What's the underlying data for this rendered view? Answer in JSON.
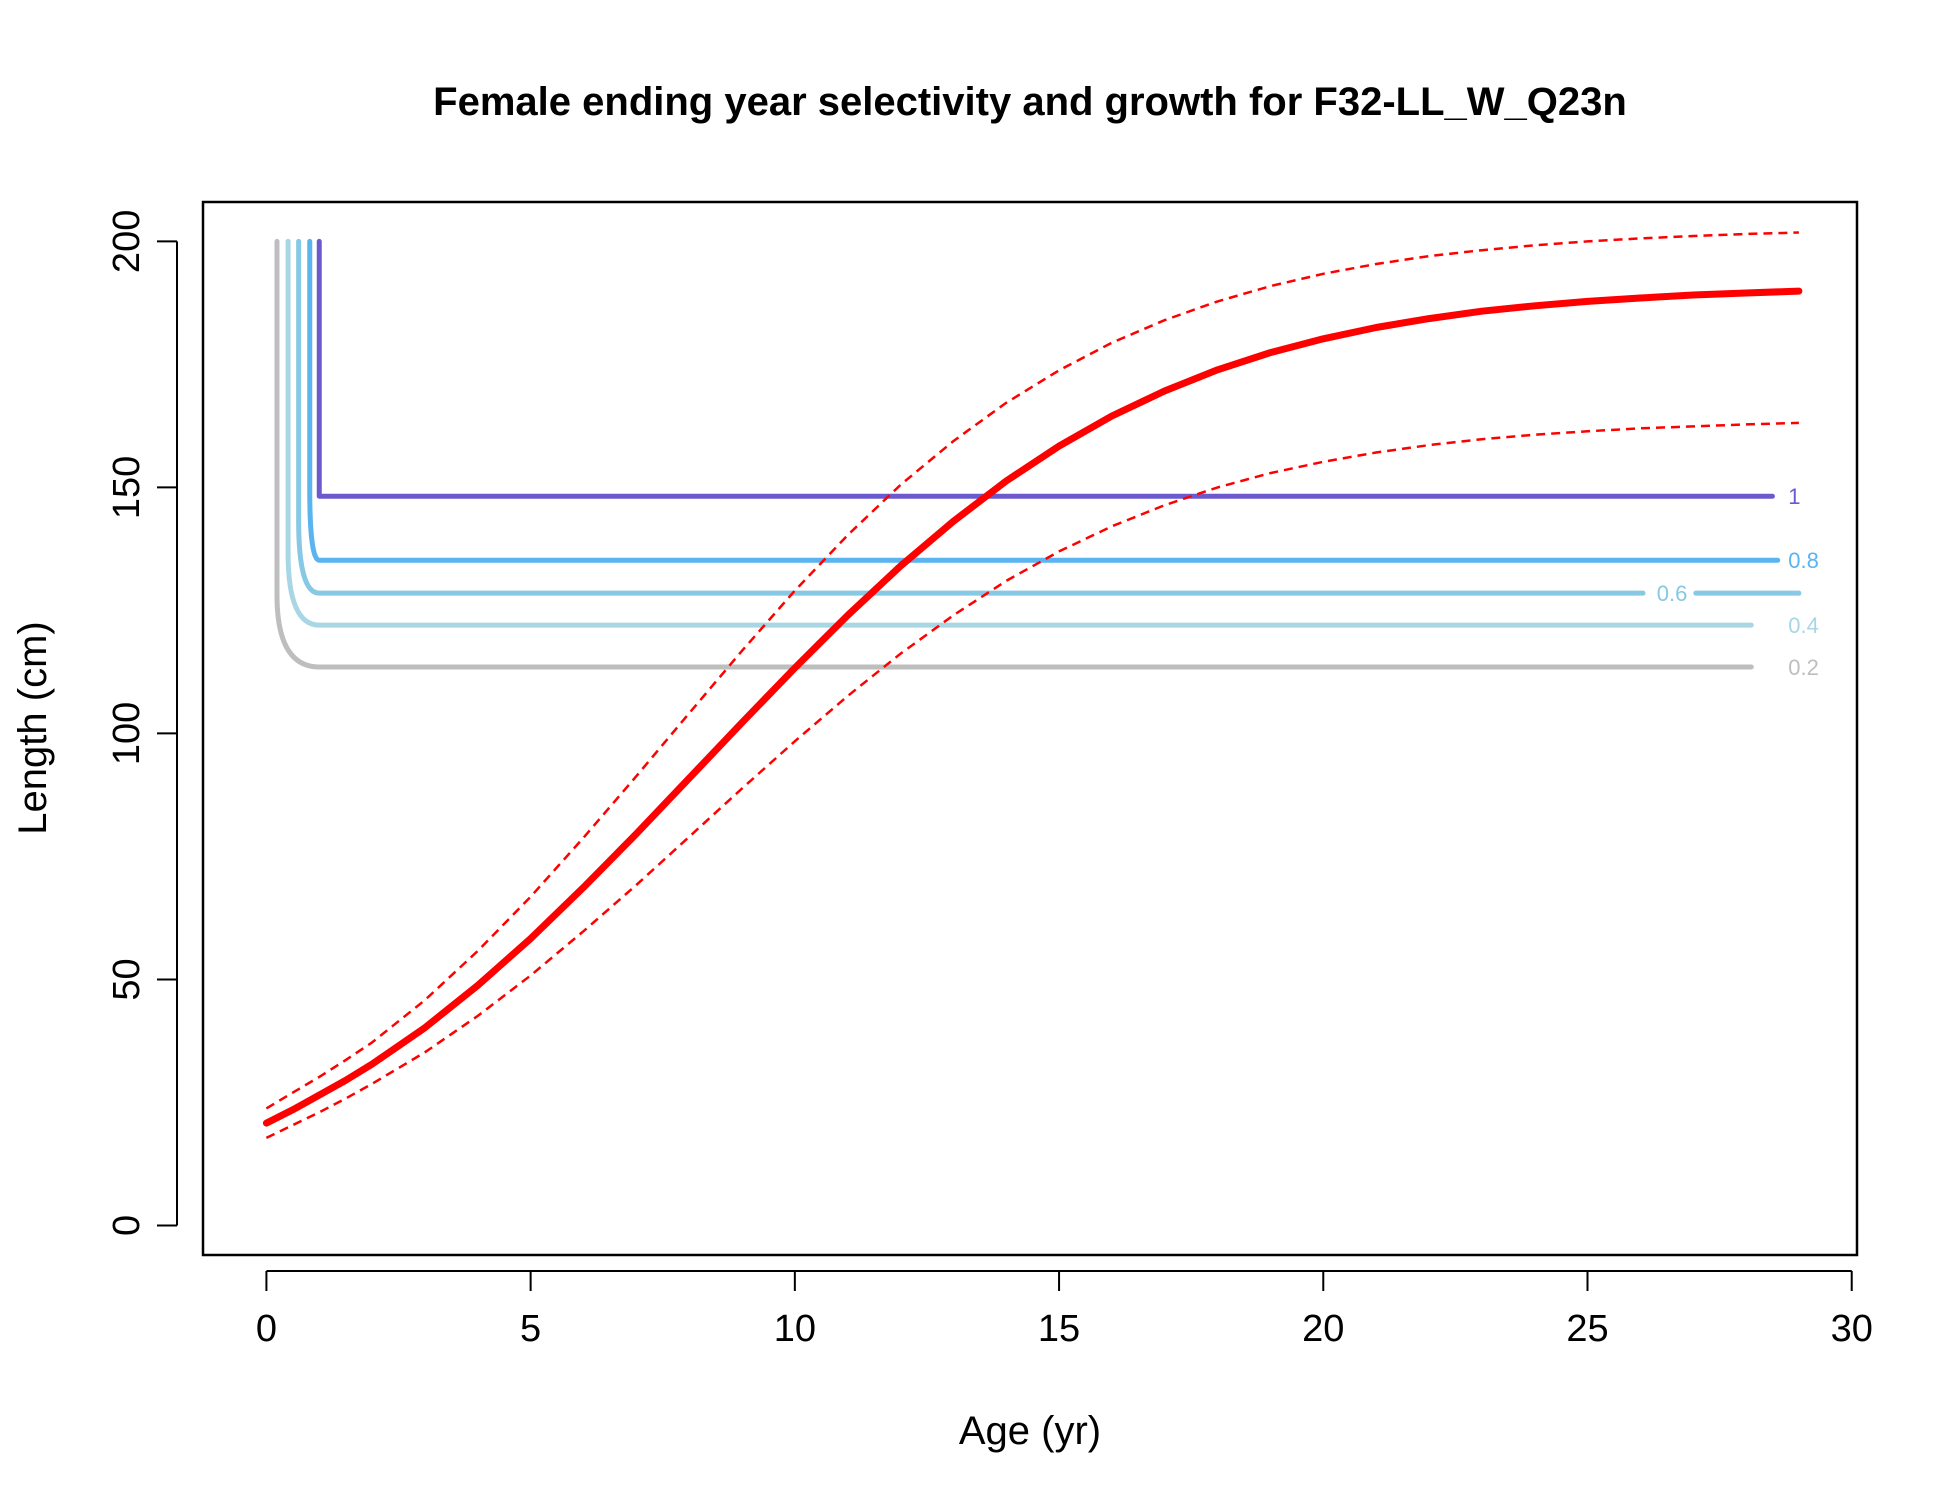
{
  "chart_data": {
    "type": "line",
    "title": "Female ending year selectivity and growth for F32-LL_W_Q23n",
    "xlabel": "Age (yr)",
    "ylabel": "Length (cm)",
    "xlim": [
      -1.2,
      30.1
    ],
    "ylim": [
      -6,
      208
    ],
    "x_ticks": [
      0,
      5,
      10,
      15,
      20,
      25,
      30
    ],
    "y_ticks": [
      0,
      50,
      100,
      150,
      200
    ],
    "grid": false,
    "legend": "none",
    "growth": {
      "color": "#ff0000",
      "age": [
        0,
        0.5,
        1,
        1.5,
        2,
        3,
        4,
        5,
        6,
        7,
        8,
        9,
        10,
        11,
        12,
        13,
        14,
        15,
        16,
        17,
        18,
        19,
        20,
        21,
        22,
        23,
        24,
        25,
        26,
        27,
        28,
        29
      ],
      "mean": [
        20.8,
        23.5,
        26.5,
        29.5,
        32.8,
        40.2,
        48.8,
        58.3,
        68.7,
        79.6,
        90.9,
        102.2,
        113.3,
        124.0,
        134.0,
        143.1,
        151.3,
        158.4,
        164.5,
        169.6,
        173.9,
        177.4,
        180.2,
        182.5,
        184.3,
        185.8,
        186.9,
        187.8,
        188.5,
        189.1,
        189.5,
        189.9
      ],
      "upper": [
        23.8,
        27.0,
        30.2,
        33.6,
        37.2,
        45.8,
        55.8,
        66.8,
        78.8,
        91.3,
        104.1,
        116.8,
        129.0,
        140.3,
        150.5,
        159.4,
        167.2,
        173.8,
        179.4,
        184.0,
        187.8,
        190.9,
        193.4,
        195.4,
        197.0,
        198.2,
        199.2,
        200.0,
        200.6,
        201.1,
        201.5,
        201.8
      ],
      "lower": [
        17.8,
        20.4,
        23.0,
        25.8,
        28.8,
        35.2,
        42.6,
        50.8,
        59.8,
        69.2,
        79.0,
        88.8,
        98.4,
        107.6,
        116.2,
        124.0,
        131.0,
        137.0,
        142.1,
        146.4,
        150.0,
        152.9,
        155.2,
        157.1,
        158.6,
        159.8,
        160.7,
        161.4,
        162.0,
        162.4,
        162.8,
        163.1
      ]
    },
    "selectivity_contours": [
      {
        "level": "1",
        "color": "#6a5acd",
        "length": 148.2,
        "x_vertical": 1.0,
        "x_start_curve": 1.0,
        "x_end": 28.5,
        "label_x": 28.8
      },
      {
        "level": "0.8",
        "color": "#5ab4f0",
        "length": 135.2,
        "x_vertical": 0.82,
        "x_start_curve": 1.0,
        "x_end": 28.6,
        "label_x": 28.8
      },
      {
        "level": "0.6",
        "color": "#87c8e4",
        "length": 128.5,
        "x_vertical": 0.61,
        "x_start_curve": 1.0,
        "x_end": 29.0,
        "label_x": 26.6,
        "gap": [
          26.05,
          27.05
        ]
      },
      {
        "level": "0.4",
        "color": "#a8d6e4",
        "length": 122.0,
        "x_vertical": 0.41,
        "x_start_curve": 1.0,
        "x_end": 28.1,
        "label_x": 28.8
      },
      {
        "level": "0.2",
        "color": "#bebebe",
        "length": 113.5,
        "x_vertical": 0.2,
        "x_start_curve": 1.0,
        "x_end": 28.1,
        "label_x": 28.8
      }
    ]
  }
}
